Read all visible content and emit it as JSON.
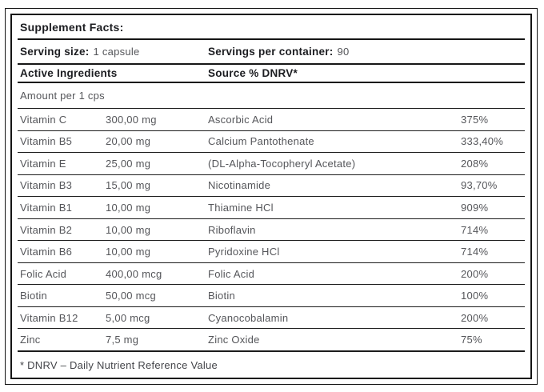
{
  "label": {
    "title": "Supplement Facts:",
    "serving": {
      "size_label": "Serving size:",
      "size_value": "1 capsule",
      "container_label": "Servings per container:",
      "container_value": "90"
    },
    "column_headers": {
      "active_ingredients": "Active Ingredients",
      "source_dnrv": "Source % DNRV*"
    },
    "amount_header": "Amount per 1 cps",
    "rows": [
      {
        "name": "Vitamin C",
        "amount": "300,00 mg",
        "source": "Ascorbic Acid",
        "dnrv": "375%"
      },
      {
        "name": "Vitamin B5",
        "amount": "20,00 mg",
        "source": "Calcium Pantothenate",
        "dnrv": "333,40%"
      },
      {
        "name": "Vitamin E",
        "amount": "25,00 mg",
        "source": "(DL-Alpha-Tocopheryl Acetate)",
        "dnrv": "208%"
      },
      {
        "name": "Vitamin B3",
        "amount": "15,00 mg",
        "source": "Nicotinamide",
        "dnrv": "93,70%"
      },
      {
        "name": "Vitamin B1",
        "amount": "10,00 mg",
        "source": "Thiamine HCl",
        "dnrv": "909%"
      },
      {
        "name": "Vitamin B2",
        "amount": "10,00 mg",
        "source": "Riboflavin",
        "dnrv": "714%"
      },
      {
        "name": "Vitamin B6",
        "amount": "10,00 mg",
        "source": "Pyridoxine HCl",
        "dnrv": "714%"
      },
      {
        "name": "Folic Acid",
        "amount": "400,00 mcg",
        "source": "Folic Acid",
        "dnrv": "200%"
      },
      {
        "name": "Biotin",
        "amount": "50,00 mcg",
        "source": "Biotin",
        "dnrv": "100%"
      },
      {
        "name": "Vitamin B12",
        "amount": "5,00 mcg",
        "source": "Cyanocobalamin",
        "dnrv": "200%"
      },
      {
        "name": "Zinc",
        "amount": "7,5 mg",
        "source": "Zinc Oxide",
        "dnrv": "75%"
      }
    ],
    "footnote": "* DNRV – Daily Nutrient Reference Value"
  },
  "colors": {
    "border": "#141414",
    "heading_text": "#1c1d21",
    "body_text": "#55565a",
    "footnote_text": "#44454a",
    "background": "#ffffff"
  }
}
